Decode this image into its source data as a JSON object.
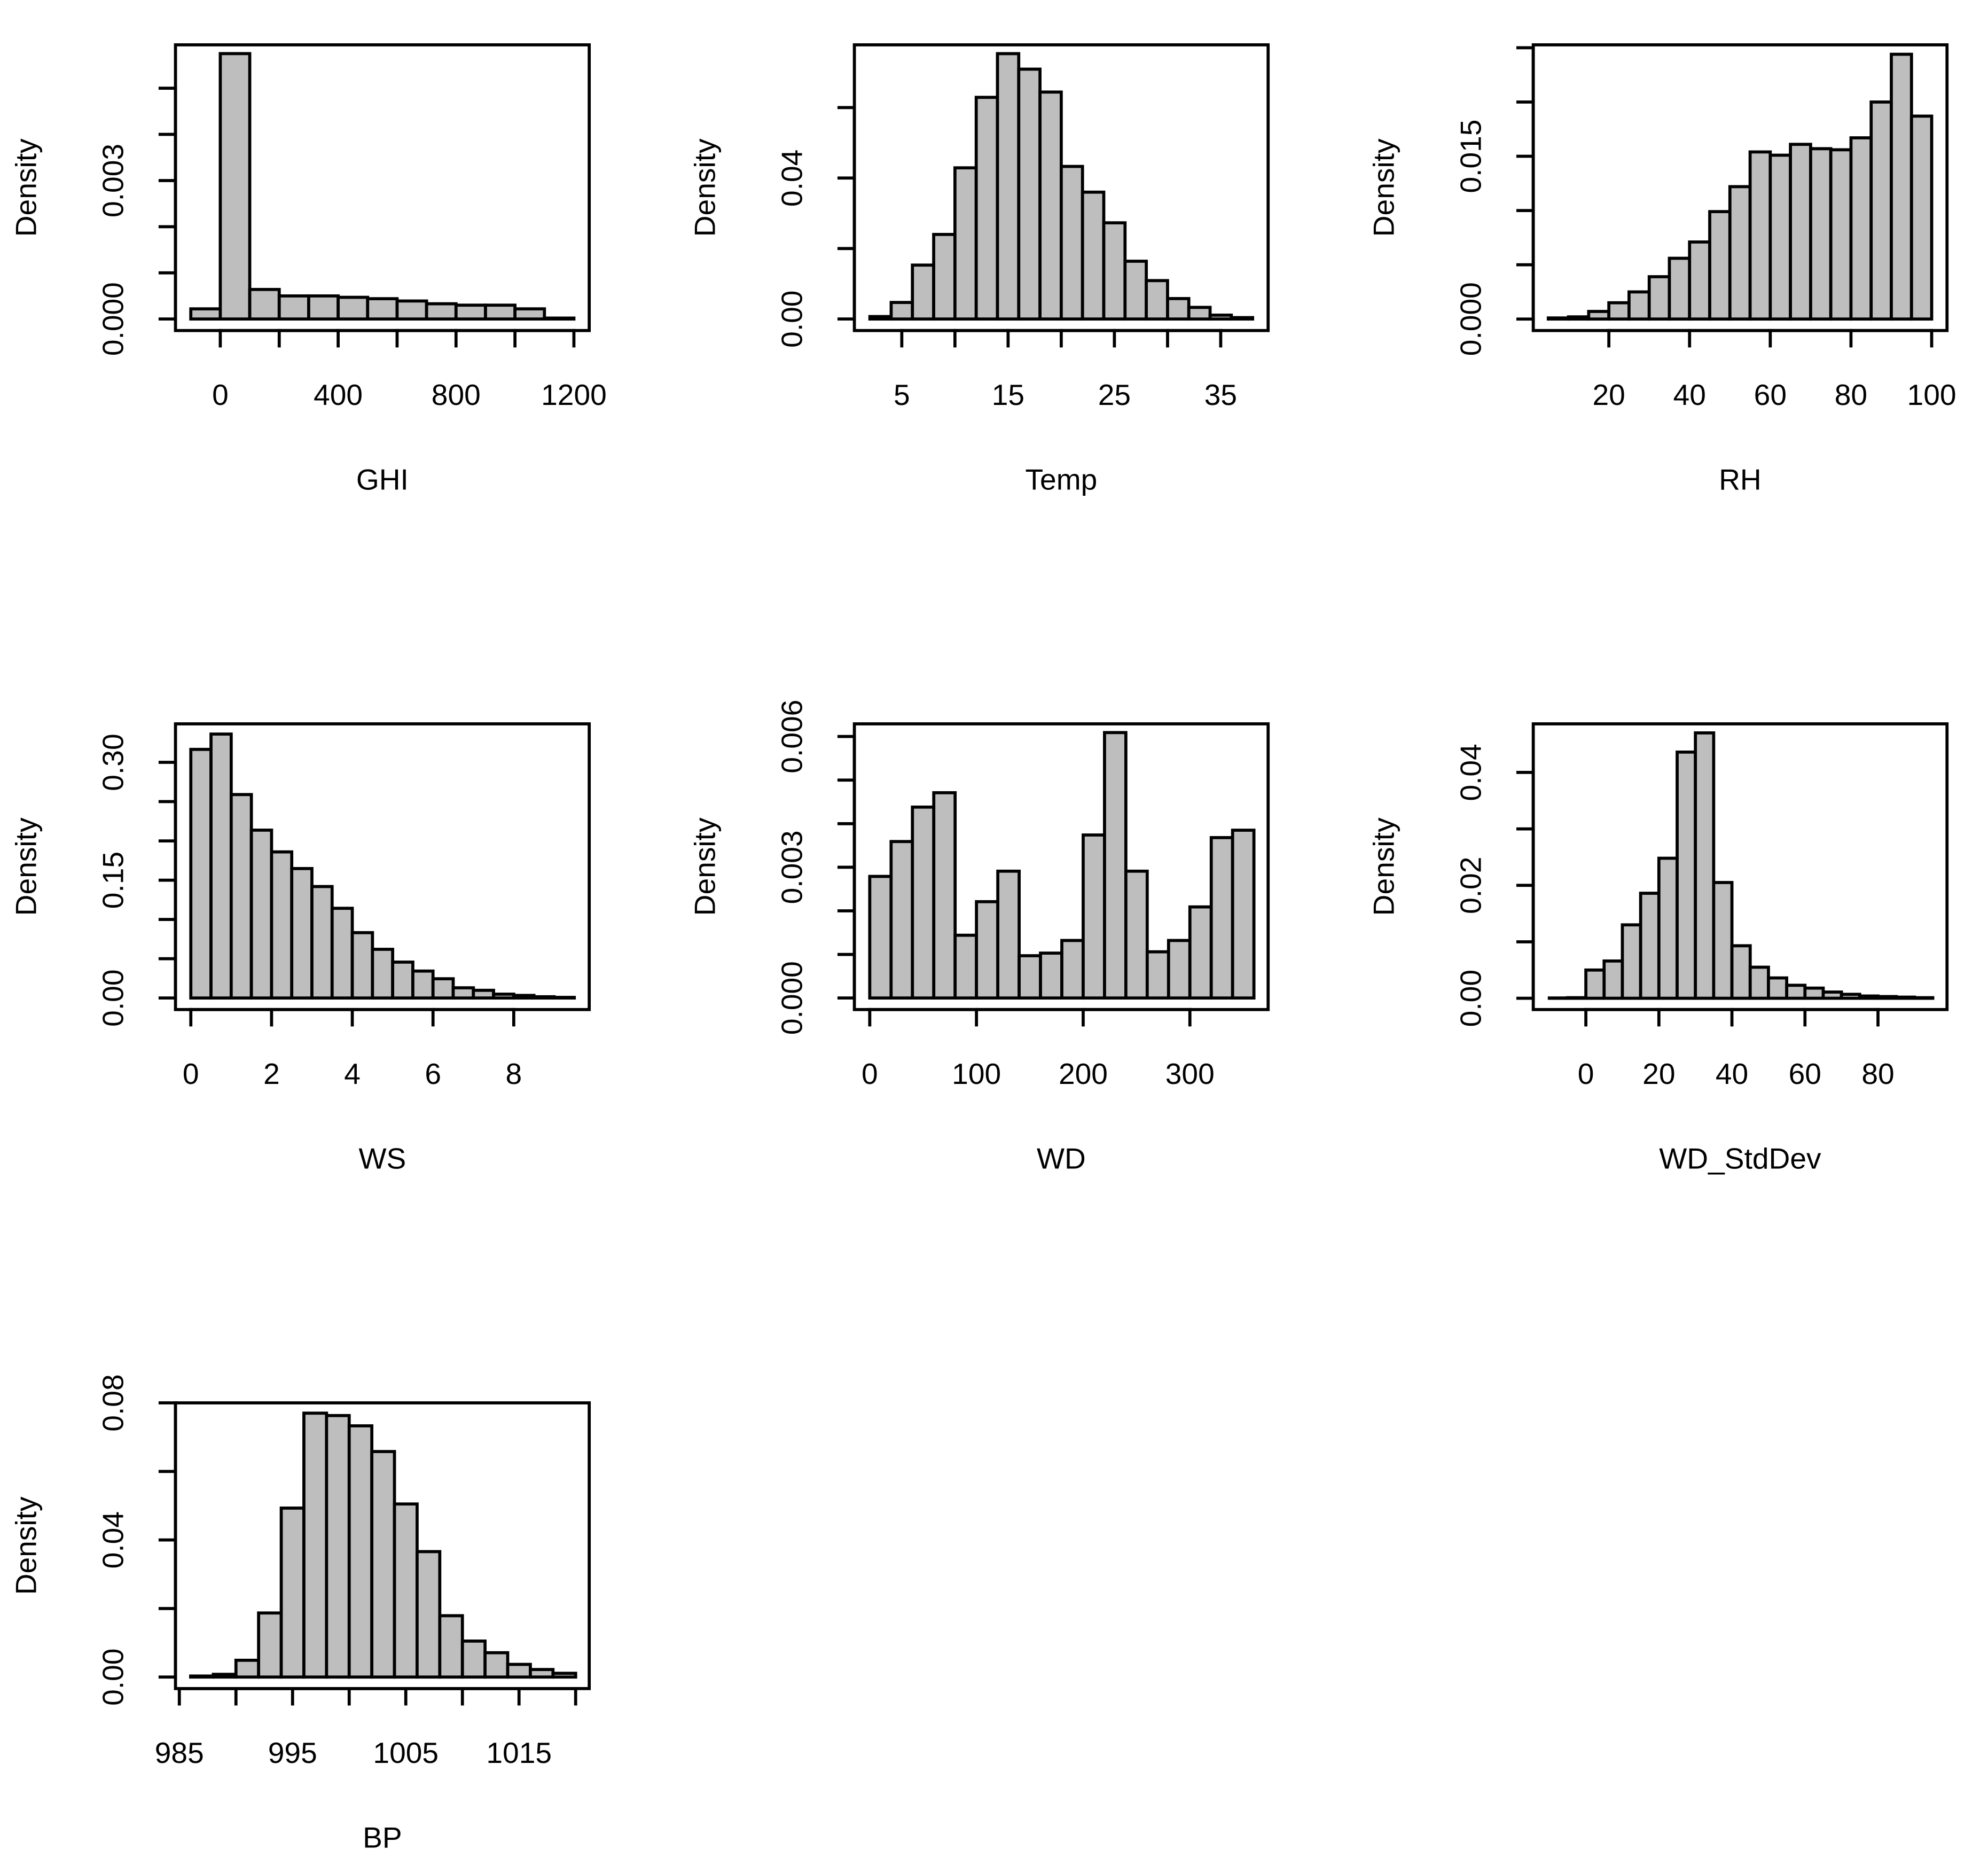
{
  "chart_data": [
    {
      "type": "histogram",
      "xlabel": "GHI",
      "ylabel": "Density",
      "color": "#bebebe",
      "bins": [
        -100,
        0,
        100,
        200,
        300,
        400,
        500,
        600,
        700,
        800,
        900,
        1000,
        1100,
        1200
      ],
      "values": [
        0.00022,
        0.00575,
        0.00064,
        0.0005,
        0.0005,
        0.00047,
        0.00044,
        0.00039,
        0.00033,
        0.0003,
        0.0003,
        0.00022,
        2e-05
      ],
      "xlim": [
        -152,
        1252
      ],
      "ylim": [
        -0.00025,
        0.00594
      ],
      "xticks": [
        0,
        400,
        800,
        1200
      ],
      "xticks_unlabeled": [
        200,
        600,
        1000
      ],
      "yticks": [
        {
          "value": 0,
          "label": "0.000"
        },
        0.003
      ],
      "yticks_unlabeled": [
        0.001,
        0.002,
        0.004,
        0.005
      ]
    },
    {
      "type": "histogram",
      "xlabel": "Temp",
      "ylabel": "Density",
      "color": "#bebebe",
      "bins": [
        2,
        4,
        6,
        8,
        10,
        12,
        14,
        16,
        18,
        20,
        22,
        24,
        26,
        28,
        30,
        32,
        34,
        36,
        38
      ],
      "values": [
        0.0007,
        0.0047,
        0.0153,
        0.024,
        0.0429,
        0.0629,
        0.0753,
        0.0709,
        0.0644,
        0.0433,
        0.036,
        0.0273,
        0.0164,
        0.0109,
        0.0058,
        0.0033,
        0.0011,
        0.0004
      ],
      "xlim": [
        0.54,
        39.46
      ],
      "ylim": [
        -0.00327,
        0.0778
      ],
      "xticks": [
        5,
        15,
        25,
        35
      ],
      "xticks_unlabeled": [
        10,
        20,
        30
      ],
      "yticks": [
        {
          "value": 0,
          "label": "0.00"
        },
        0.04
      ],
      "yticks_unlabeled": [
        0.02,
        0.06
      ]
    },
    {
      "type": "histogram",
      "xlabel": "RH",
      "ylabel": "Density",
      "color": "#bebebe",
      "bins": [
        5,
        10,
        15,
        20,
        25,
        30,
        35,
        40,
        45,
        50,
        55,
        60,
        65,
        70,
        75,
        80,
        85,
        90,
        95,
        100
      ],
      "values": [
        0.0001,
        0.0002,
        0.0007,
        0.0015,
        0.0025,
        0.0039,
        0.0056,
        0.0071,
        0.0099,
        0.0122,
        0.0154,
        0.0151,
        0.0161,
        0.0157,
        0.0156,
        0.0167,
        0.02,
        0.0244,
        0.0187
      ],
      "xlim": [
        1.27,
        103.8
      ],
      "ylim": [
        -0.00106,
        0.02527
      ],
      "xticks": [
        20,
        40,
        60,
        80,
        100
      ],
      "xticks_unlabeled": [],
      "yticks": [
        {
          "value": 0,
          "label": "0.000"
        },
        0.015
      ],
      "yticks_unlabeled": [
        0.005,
        0.01,
        0.02,
        0.025
      ]
    },
    {
      "type": "histogram",
      "xlabel": "WS",
      "ylabel": "Density",
      "color": "#bebebe",
      "bins": [
        0,
        0.5,
        1,
        1.5,
        2,
        2.5,
        3,
        3.5,
        4,
        4.5,
        5,
        5.5,
        6,
        6.5,
        7,
        7.5,
        8,
        8.5,
        9,
        9.5
      ],
      "values": [
        0.3165,
        0.336,
        0.259,
        0.2137,
        0.186,
        0.1648,
        0.1419,
        0.1142,
        0.0832,
        0.062,
        0.0457,
        0.0343,
        0.0245,
        0.013,
        0.0098,
        0.0049,
        0.0033,
        0.0016,
        0.0008
      ],
      "xlim": [
        -0.38,
        9.87
      ],
      "ylim": [
        -0.0147,
        0.349
      ],
      "xticks": [
        0,
        2,
        4,
        6,
        8
      ],
      "xticks_unlabeled": [],
      "yticks": [
        {
          "value": 0,
          "label": "0.00"
        },
        0.15,
        {
          "value": 0.3,
          "label": "0.30"
        }
      ],
      "yticks_unlabeled": [
        0.05,
        0.1,
        0.2,
        0.25
      ]
    },
    {
      "type": "histogram",
      "xlabel": "WD",
      "ylabel": "Density",
      "color": "#bebebe",
      "bins": [
        0,
        20,
        40,
        60,
        80,
        100,
        120,
        140,
        160,
        180,
        200,
        220,
        240,
        260,
        280,
        300,
        320,
        340,
        360
      ],
      "values": [
        0.00279,
        0.00359,
        0.00438,
        0.00471,
        0.00144,
        0.00221,
        0.00291,
        0.00097,
        0.00103,
        0.00132,
        0.00374,
        0.00609,
        0.00291,
        0.00106,
        0.00132,
        0.00209,
        0.00368,
        0.00385
      ],
      "xlim": [
        -14.4,
        373.3
      ],
      "ylim": [
        -0.000265,
        0.00629
      ],
      "xticks": [
        0,
        100,
        200,
        300
      ],
      "xticks_unlabeled": [],
      "yticks": [
        {
          "value": 0,
          "label": "0.000"
        },
        0.003,
        0.006
      ],
      "yticks_unlabeled": [
        0.001,
        0.002,
        0.004,
        0.005
      ]
    },
    {
      "type": "histogram",
      "xlabel": "WD_StdDev",
      "ylabel": "Density",
      "color": "#bebebe",
      "bins": [
        -10,
        -5,
        0,
        5,
        10,
        15,
        20,
        25,
        30,
        35,
        40,
        45,
        50,
        55,
        60,
        65,
        70,
        75,
        80,
        85,
        90,
        95
      ],
      "values": [
        5e-05,
        0.0001,
        0.005,
        0.0066,
        0.013,
        0.0186,
        0.0248,
        0.0436,
        0.047,
        0.0205,
        0.0093,
        0.0055,
        0.0036,
        0.0023,
        0.0018,
        0.0011,
        0.0007,
        0.0004,
        0.0003,
        0.0002,
        0.0001
      ],
      "xlim": [
        -14.4,
        98.9
      ],
      "ylim": [
        -0.002,
        0.0486
      ],
      "xticks": [
        0,
        20,
        40,
        60,
        80
      ],
      "xticks_unlabeled": [],
      "yticks": [
        {
          "value": 0,
          "label": "0.00"
        },
        0.02,
        0.04
      ],
      "yticks_unlabeled": [
        0.01,
        0.03
      ]
    },
    {
      "type": "histogram",
      "xlabel": "BP",
      "ylabel": "Density",
      "color": "#bebebe",
      "bins": [
        986,
        988,
        990,
        992,
        994,
        996,
        998,
        1000,
        1002,
        1004,
        1006,
        1008,
        1010,
        1012,
        1014,
        1016,
        1018,
        1020
      ],
      "values": [
        0.0003,
        0.0008,
        0.0049,
        0.0187,
        0.0493,
        0.077,
        0.0763,
        0.0733,
        0.0658,
        0.0505,
        0.0366,
        0.0179,
        0.0105,
        0.0071,
        0.0037,
        0.0022,
        0.0011
      ],
      "xlim": [
        984.66,
        1021.2
      ],
      "ylim": [
        -0.00336,
        0.08
      ],
      "xticks": [
        985,
        995,
        1005,
        1015
      ],
      "xticks_unlabeled": [
        990,
        1000,
        1010,
        1020
      ],
      "yticks": [
        {
          "value": 0,
          "label": "0.00"
        },
        0.04,
        0.08
      ],
      "yticks_unlabeled": [
        0.02,
        0.06
      ]
    }
  ]
}
